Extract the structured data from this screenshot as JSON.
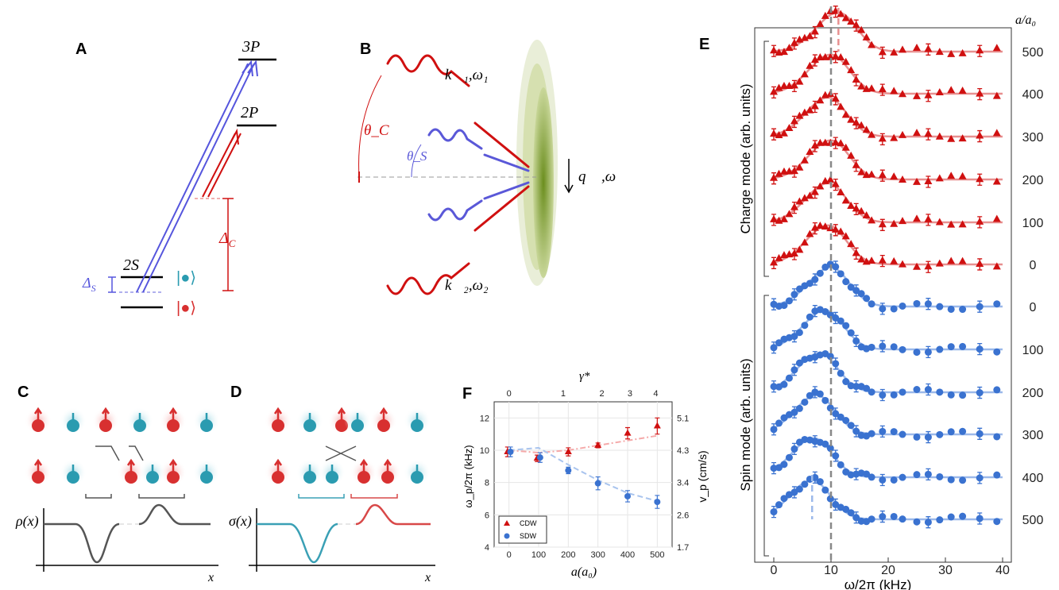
{
  "panels": {
    "a": "A",
    "b": "B",
    "c": "C",
    "d": "D",
    "e": "E",
    "f": "F"
  },
  "panel_a": {
    "level_3p": "3P",
    "level_2p": "2P",
    "level_2s": "2S",
    "delta_c": "Δ",
    "delta_c_sub": "C",
    "delta_s": "Δ",
    "delta_s_sub": "S",
    "ket_up": "|●⟩",
    "ket_down": "|●⟩",
    "colors": {
      "spin": "#5555dd",
      "charge": "#d01010"
    }
  },
  "panel_b": {
    "k1": "k⃗₁,ω₁",
    "k2": "k⃗₂,ω₂",
    "theta_c": "θ_C",
    "theta_s": "θ_S",
    "q": "q⃗ ,ω"
  },
  "panel_c": {
    "ylabel": "ρ(x)",
    "xlabel": "x"
  },
  "panel_d": {
    "ylabel": "σ(x)",
    "xlabel": "x"
  },
  "chart_data": [
    {
      "panel": "E",
      "type": "line",
      "xlabel": "ω/2π (kHz)",
      "xlim": [
        0,
        40
      ],
      "xticks": [
        "0",
        "10",
        "20",
        "30",
        "40"
      ],
      "legend_title": "a/a₀",
      "ylabel_top": "Charge mode (arb. units)",
      "ylabel_bottom": "Spin mode (arb. units)",
      "reference_line_khz": 10,
      "series": [
        {
          "group": "charge",
          "label": "500",
          "peak_khz": 11.3,
          "color": "#d01010",
          "marker": "triangle"
        },
        {
          "group": "charge",
          "label": "400",
          "peak_khz": 10,
          "color": "#d01010",
          "marker": "triangle"
        },
        {
          "group": "charge",
          "label": "300",
          "peak_khz": 9.5,
          "color": "#d01010",
          "marker": "triangle"
        },
        {
          "group": "charge",
          "label": "200",
          "peak_khz": 10,
          "color": "#d01010",
          "marker": "triangle"
        },
        {
          "group": "charge",
          "label": "100",
          "peak_khz": 9.5,
          "color": "#d01010",
          "marker": "triangle"
        },
        {
          "group": "charge",
          "label": "0",
          "peak_khz": 9.5,
          "color": "#d01010",
          "marker": "triangle"
        },
        {
          "group": "spin",
          "label": "0",
          "peak_khz": 10,
          "color": "#3a72d0",
          "marker": "circle"
        },
        {
          "group": "spin",
          "label": "100",
          "peak_khz": 9,
          "color": "#3a72d0",
          "marker": "circle"
        },
        {
          "group": "spin",
          "label": "200",
          "peak_khz": 8,
          "color": "#3a72d0",
          "marker": "circle"
        },
        {
          "group": "spin",
          "label": "300",
          "peak_khz": 7.5,
          "color": "#3a72d0",
          "marker": "circle"
        },
        {
          "group": "spin",
          "label": "400",
          "peak_khz": 7,
          "color": "#3a72d0",
          "marker": "circle"
        },
        {
          "group": "spin",
          "label": "500",
          "peak_khz": 6.7,
          "color": "#3a72d0",
          "marker": "circle"
        }
      ]
    },
    {
      "panel": "F",
      "type": "scatter",
      "xlabel": "a(a₀)",
      "ylabel": "ω_p/2π (kHz)",
      "ylabel_right": "v_p (cm/s)",
      "top_label": "γ*",
      "xlim": [
        -50,
        550
      ],
      "ylim": [
        4,
        13
      ],
      "grid": true,
      "legend": "bottom-left",
      "xticks": [
        "0",
        "100",
        "200",
        "300",
        "400",
        "500"
      ],
      "yticks": [
        "4",
        "6",
        "8",
        "10",
        "12"
      ],
      "yticks_right": [
        "1.7",
        "2.6",
        "3.4",
        "4.3",
        "5.1"
      ],
      "top_ticks": [
        {
          "label": "0",
          "a": 0
        },
        {
          "label": "1",
          "a": 183
        },
        {
          "label": "2",
          "a": 313
        },
        {
          "label": "3",
          "a": 408
        },
        {
          "label": "4",
          "a": 495
        }
      ],
      "series": [
        {
          "name": "CDW",
          "color": "#d01010",
          "marker": "triangle",
          "x": [
            -5,
            95,
            200,
            300,
            400,
            500
          ],
          "y": [
            9.9,
            9.5,
            9.9,
            10.3,
            11.05,
            11.5
          ],
          "err": [
            0.3,
            0.2,
            0.25,
            0.15,
            0.35,
            0.5
          ],
          "fit_x": [
            0,
            100,
            200,
            300,
            400,
            500
          ],
          "fit_y": [
            10,
            9.85,
            10.0,
            10.3,
            10.6,
            10.9
          ]
        },
        {
          "name": "SDW",
          "color": "#3a72d0",
          "marker": "circle",
          "x": [
            5,
            105,
            200,
            300,
            400,
            500
          ],
          "y": [
            9.9,
            9.55,
            8.75,
            7.95,
            7.15,
            6.8
          ],
          "err": [
            0.3,
            0.3,
            0.2,
            0.4,
            0.35,
            0.4
          ],
          "fit_x": [
            0,
            100,
            200,
            300,
            400,
            500
          ],
          "fit_y": [
            10,
            10.15,
            9.1,
            8.15,
            7.35,
            6.85
          ]
        }
      ]
    }
  ]
}
